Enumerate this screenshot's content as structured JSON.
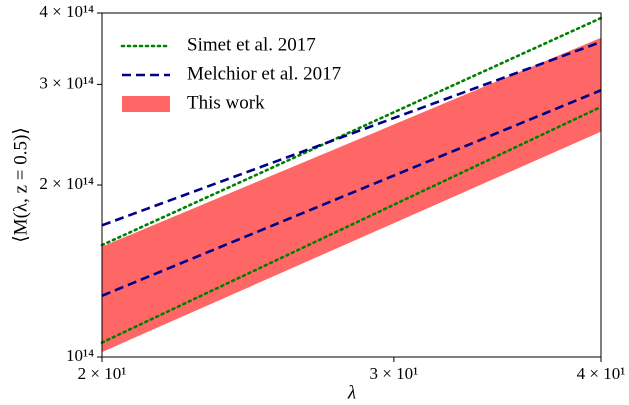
{
  "chart_data": {
    "type": "line",
    "xlabel": "λ",
    "ylabel": "⟨M(λ, z = 0.5)⟩",
    "xscale": "log",
    "yscale": "log",
    "xlim": [
      20,
      40
    ],
    "ylim": [
      100000000000000.0,
      400000000000000.0
    ],
    "xticks": [
      {
        "value": 20,
        "label": "2 × 10¹"
      },
      {
        "value": 30,
        "label": "3 × 10¹"
      },
      {
        "value": 40,
        "label": "4 × 10¹"
      }
    ],
    "yticks": [
      {
        "value": 100000000000000.0,
        "label": "10¹⁴"
      },
      {
        "value": 200000000000000.0,
        "label": "2 × 10¹⁴"
      },
      {
        "value": 300000000000000.0,
        "label": "3 × 10¹⁴"
      },
      {
        "value": 400000000000000.0,
        "label": "4 × 10¹⁴"
      }
    ],
    "legend": "upper left",
    "x": [
      20,
      40
    ],
    "series": [
      {
        "name": "Simet et al. 2017",
        "color": "#008000",
        "style": "dotted",
        "lower": [
          106000000000000.0,
          274000000000000.0
        ],
        "upper": [
          157000000000000.0,
          392000000000000.0
        ]
      },
      {
        "name": "Melchior et al. 2017",
        "color": "#00008b",
        "style": "dashed",
        "lower": [
          128000000000000.0,
          293000000000000.0
        ],
        "upper": [
          170000000000000.0,
          356000000000000.0
        ]
      },
      {
        "name": "This work",
        "color": "#ff6666",
        "style": "band",
        "lower": [
          102000000000000.0,
          248000000000000.0
        ],
        "upper": [
          156000000000000.0,
          362000000000000.0
        ]
      }
    ]
  }
}
